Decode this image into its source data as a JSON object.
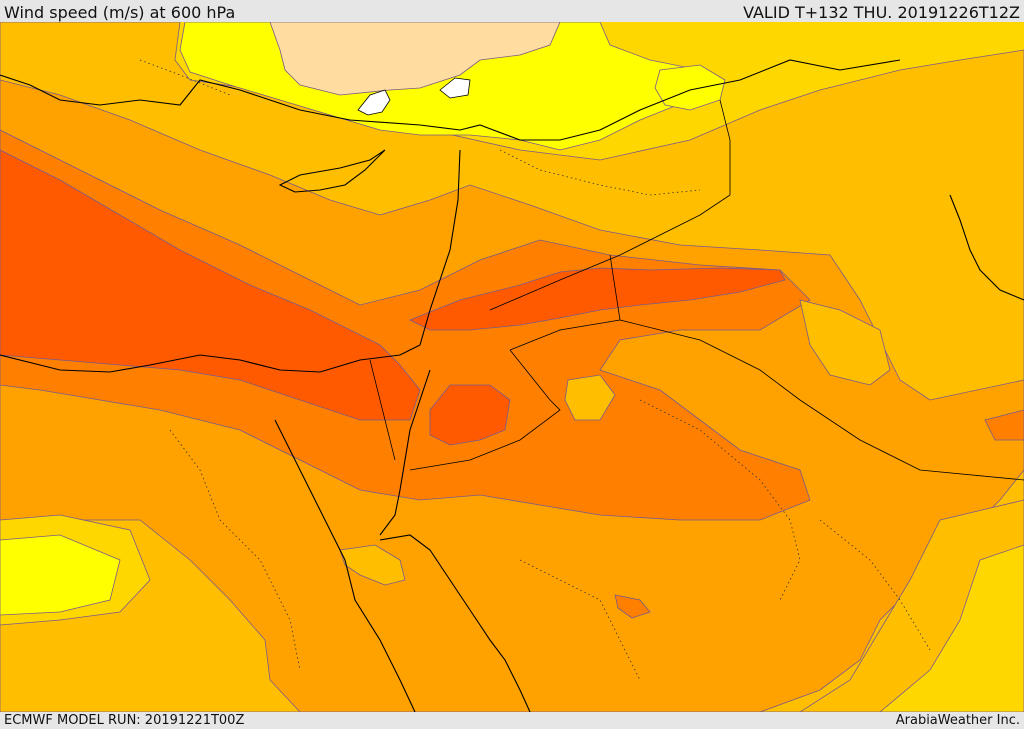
{
  "header": {
    "title": "Wind speed (m/s) at 600 hPa",
    "valid": "VALID T+132 THU. 20191226T12Z"
  },
  "footer": {
    "model_run": "ECMWF MODEL RUN: 20191221T00Z",
    "credit": "ArabiaWeather Inc."
  },
  "colors": {
    "band_5_10": "#ffff00",
    "band_10_15": "#ffd700",
    "band_15_20": "#ffbe00",
    "band_20_25": "#ffa200",
    "band_25_30": "#ff8000",
    "band_30_35": "#ff5a00",
    "band_low": "#ffdca0",
    "calm": "#ffffff",
    "contour": "#7a5a8a",
    "coast": "#000000"
  }
}
